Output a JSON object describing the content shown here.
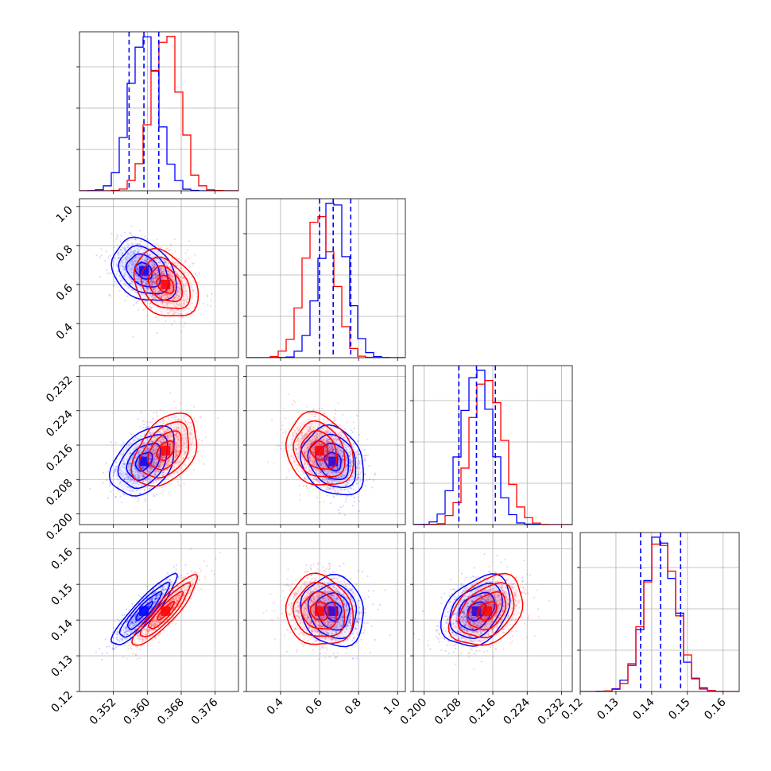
{
  "chart_data": {
    "type": "scatter",
    "subtype": "corner-plot",
    "title": "",
    "grid": true,
    "legend": "none",
    "colors": {
      "series_a": "#0000ff",
      "series_b": "#ff0000",
      "quantile_line": "#0000ff"
    },
    "series": [
      {
        "color": "#0000ff",
        "mean": [
          0.3592,
          0.67,
          0.2122,
          0.1425
        ],
        "std": [
          0.0033,
          0.07,
          0.0035,
          0.0043
        ],
        "corr": [
          [
            1,
            -0.3,
            0.4,
            0.9
          ],
          [
            -0.3,
            1,
            -0.2,
            -0.1
          ],
          [
            0.4,
            -0.2,
            1,
            0.35
          ],
          [
            0.9,
            -0.1,
            0.35,
            1
          ]
        ]
      },
      {
        "color": "#ff0000",
        "mean": [
          0.3643,
          0.6,
          0.2147,
          0.1425
        ],
        "std": [
          0.0033,
          0.075,
          0.0037,
          0.0043
        ],
        "corr": [
          [
            1,
            -0.3,
            0.4,
            0.9
          ],
          [
            -0.3,
            1,
            -0.2,
            -0.1
          ],
          [
            0.4,
            -0.2,
            1,
            0.35
          ],
          [
            0.9,
            -0.1,
            0.35,
            1
          ]
        ]
      }
    ],
    "parameters": [
      {
        "range": [
          0.344,
          0.3815
        ],
        "ticks": [
          "0.352",
          "0.360",
          "0.368",
          "0.376"
        ],
        "quantiles": [
          0.3557,
          0.3592,
          0.3627
        ]
      },
      {
        "range": [
          0.225,
          1.04
        ],
        "ticks": [
          "0.4",
          "0.6",
          "0.8",
          "1.0"
        ],
        "quantiles": [
          0.6,
          0.67,
          0.76
        ]
      },
      {
        "range": [
          0.1975,
          0.2345
        ],
        "ticks": [
          "0.200",
          "0.208",
          "0.216",
          "0.224",
          "0.232"
        ],
        "quantiles": [
          0.2081,
          0.2122,
          0.2166
        ]
      },
      {
        "range": [
          0.12,
          0.1645
        ],
        "ticks": [
          "0.12",
          "0.13",
          "0.14",
          "0.15",
          "0.16"
        ],
        "quantiles": [
          0.1369,
          0.1425,
          0.1481
        ]
      }
    ]
  }
}
